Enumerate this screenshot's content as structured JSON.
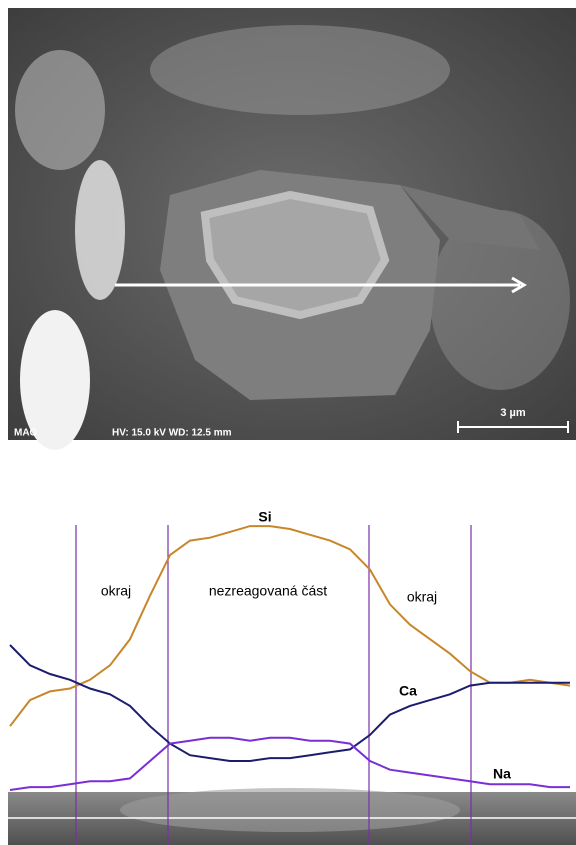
{
  "image": {
    "info_left": "MAG",
    "info_mid": "HV: 15.0 kV  WD: 12.5 mm",
    "scale_label": "3 µm"
  },
  "chart_data": {
    "type": "line",
    "x": [
      0,
      1,
      2,
      3,
      4,
      5,
      6,
      7,
      8,
      9,
      10,
      11,
      12,
      13,
      14,
      15,
      16,
      17,
      18,
      19,
      20,
      21,
      22,
      23,
      24,
      25,
      26,
      27,
      28
    ],
    "xlim": [
      0,
      28
    ],
    "ylim": [
      0,
      100
    ],
    "boundaries": [
      3.3,
      7.9,
      17.95,
      23.05
    ],
    "region_labels": [
      "okraj",
      "nezreagovaná část",
      "okraj"
    ],
    "series": [
      {
        "name": "Si",
        "color": "#c8862a",
        "values": [
          22,
          31,
          34,
          35,
          38,
          43,
          52,
          67,
          81,
          86,
          87,
          89,
          91,
          91,
          90,
          88,
          86,
          83,
          76,
          64,
          57,
          52,
          47,
          41,
          37,
          37,
          38,
          37,
          36
        ]
      },
      {
        "name": "Ca",
        "color": "#1c1c6e",
        "values": [
          50,
          43,
          40,
          38,
          35,
          33,
          29,
          22,
          16,
          12,
          11,
          10,
          10,
          11,
          11,
          12,
          13,
          14,
          19,
          26,
          29,
          31,
          33,
          36,
          37,
          37,
          37,
          37,
          37
        ]
      },
      {
        "name": "Na",
        "color": "#7a2fd6",
        "values": [
          0,
          1,
          1,
          2,
          3,
          3,
          4,
          10,
          16,
          17,
          18,
          18,
          17,
          18,
          18,
          17,
          17,
          16,
          10,
          7,
          6,
          5,
          4,
          3,
          2,
          2,
          2,
          1,
          1
        ]
      }
    ]
  }
}
